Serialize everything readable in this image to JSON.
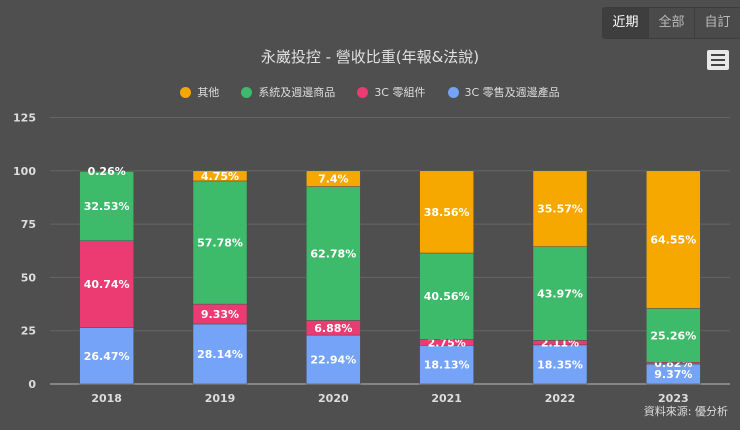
{
  "range_buttons": [
    {
      "label": "近期",
      "active": true
    },
    {
      "label": "全部",
      "active": false
    },
    {
      "label": "自訂",
      "active": false
    }
  ],
  "menu_icon": "hamburger-menu-icon",
  "source": "資料來源: 優分析",
  "chart_data": {
    "type": "bar",
    "stacked": true,
    "title": "永崴投控 - 營收比重(年報&法說)",
    "categories": [
      "2018",
      "2019",
      "2020",
      "2021",
      "2022",
      "2023"
    ],
    "ylim": [
      0,
      125
    ],
    "yticks": [
      0,
      25,
      50,
      75,
      100,
      125
    ],
    "grid": true,
    "legend_position": "top",
    "series": [
      {
        "name": "3C 零售及週邊產品",
        "color": "#74a3f7",
        "values": [
          26.47,
          28.14,
          22.94,
          18.13,
          18.35,
          9.37
        ]
      },
      {
        "name": "3C 零組件",
        "color": "#ec3a72",
        "values": [
          40.74,
          9.33,
          6.88,
          2.75,
          2.11,
          0.82
        ]
      },
      {
        "name": "系統及週邊商品",
        "color": "#3dbb6a",
        "values": [
          32.53,
          57.78,
          62.78,
          40.56,
          43.97,
          25.26
        ]
      },
      {
        "name": "其他",
        "color": "#f6a800",
        "values": [
          0.26,
          4.75,
          7.4,
          38.56,
          35.57,
          64.55
        ]
      }
    ],
    "legend_order": [
      3,
      2,
      1,
      0
    ]
  }
}
